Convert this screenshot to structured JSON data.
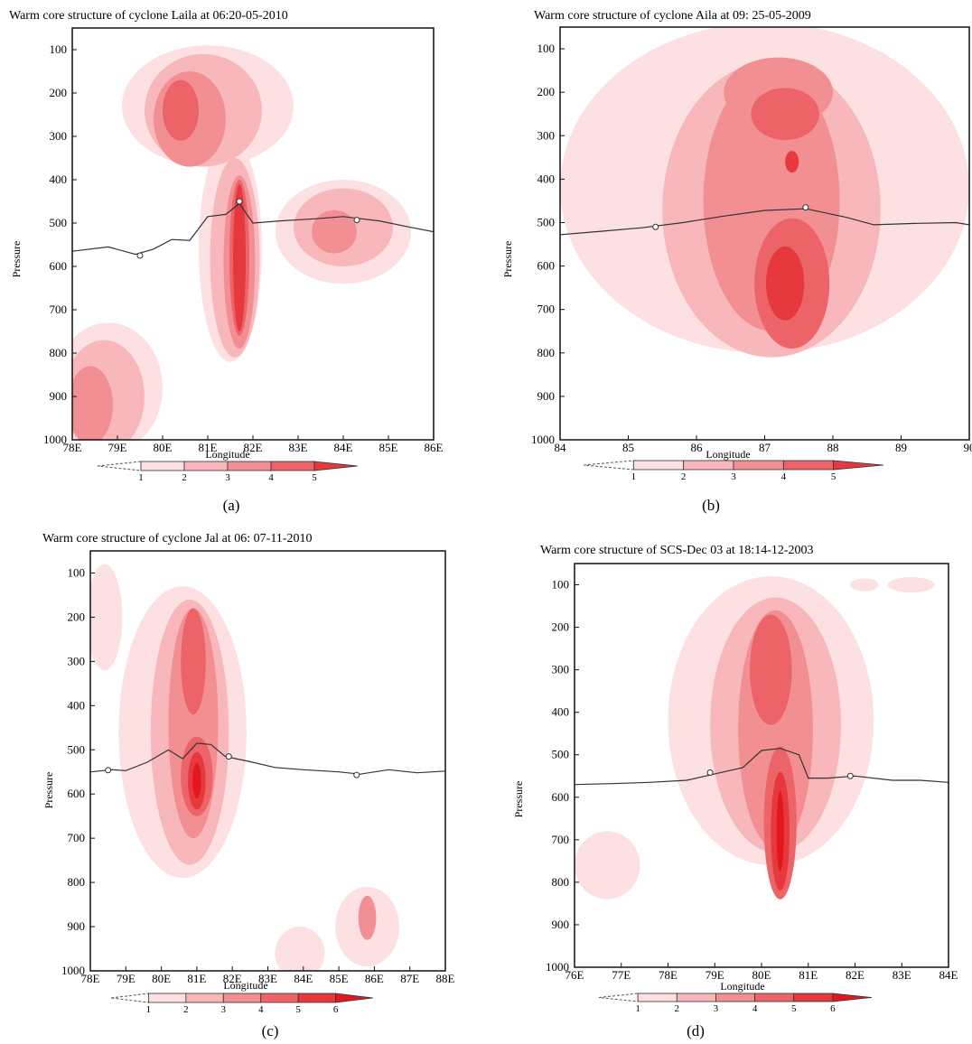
{
  "chart_data": [
    {
      "panel": "a",
      "type": "heatmap",
      "title": "Warm core structure of cyclone Laila at 06:20-05-2010",
      "xlabel": "Longitude",
      "ylabel": "Pressure",
      "caption": "(a)",
      "xticks": [
        "78E",
        "79E",
        "80E",
        "81E",
        "82E",
        "83E",
        "84E",
        "85E",
        "86E"
      ],
      "xlim": [
        78,
        86
      ],
      "yticks": [
        "100",
        "200",
        "300",
        "400",
        "500",
        "600",
        "700",
        "800",
        "900",
        "1000"
      ],
      "ylim": [
        50,
        1000
      ],
      "colorbar": [
        "1",
        "2",
        "3",
        "4",
        "5"
      ],
      "contour_line": {
        "lon": [
          78,
          78.8,
          79.4,
          79.8,
          80.2,
          80.6,
          81,
          81.4,
          81.7,
          82,
          82.6,
          83.4,
          84,
          84.8,
          85.5,
          86
        ],
        "p": [
          565,
          555,
          572,
          560,
          538,
          540,
          485,
          480,
          455,
          500,
          495,
          490,
          485,
          495,
          510,
          520
        ]
      },
      "markers": [
        {
          "lon": 79.5,
          "p": 575
        },
        {
          "lon": 81.7,
          "p": 450
        },
        {
          "lon": 84.3,
          "p": 493
        }
      ],
      "warm_regions": [
        {
          "level": 1,
          "center": [
            81,
            230
          ],
          "rx": 1.9,
          "ry": 140
        },
        {
          "level": 1,
          "center": [
            81.5,
            560
          ],
          "rx": 0.7,
          "ry": 260
        },
        {
          "level": 1,
          "center": [
            84,
            520
          ],
          "rx": 1.5,
          "ry": 120
        },
        {
          "level": 1,
          "center": [
            78.8,
            880
          ],
          "rx": 1.2,
          "ry": 150
        },
        {
          "level": 2,
          "center": [
            80.9,
            240
          ],
          "rx": 1.3,
          "ry": 130
        },
        {
          "level": 2,
          "center": [
            81.6,
            580
          ],
          "rx": 0.55,
          "ry": 230
        },
        {
          "level": 2,
          "center": [
            84,
            510
          ],
          "rx": 1.1,
          "ry": 90
        },
        {
          "level": 2,
          "center": [
            78.7,
            900
          ],
          "rx": 0.9,
          "ry": 130
        },
        {
          "level": 3,
          "center": [
            80.6,
            260
          ],
          "rx": 0.8,
          "ry": 110
        },
        {
          "level": 3,
          "center": [
            81.7,
            590
          ],
          "rx": 0.35,
          "ry": 200
        },
        {
          "level": 3,
          "center": [
            83.8,
            520
          ],
          "rx": 0.5,
          "ry": 50
        },
        {
          "level": 3,
          "center": [
            78.4,
            920
          ],
          "rx": 0.5,
          "ry": 90
        },
        {
          "level": 4,
          "center": [
            80.4,
            240
          ],
          "rx": 0.4,
          "ry": 70
        },
        {
          "level": 4,
          "center": [
            81.7,
            580
          ],
          "rx": 0.22,
          "ry": 180
        },
        {
          "level": 5,
          "center": [
            81.7,
            580
          ],
          "rx": 0.14,
          "ry": 170
        }
      ]
    },
    {
      "panel": "b",
      "type": "heatmap",
      "title": "Warm core structure of cyclone Aila at 09: 25-05-2009",
      "xlabel": "Longitude",
      "ylabel": "Pressure",
      "caption": "(b)",
      "xticks": [
        "84",
        "85",
        "86",
        "87",
        "88",
        "89",
        "90"
      ],
      "xlim": [
        84,
        90
      ],
      "yticks": [
        "100",
        "200",
        "300",
        "400",
        "500",
        "600",
        "700",
        "800",
        "900",
        "1000"
      ],
      "ylim": [
        50,
        1000
      ],
      "colorbar": [
        "1",
        "2",
        "3",
        "4",
        "5"
      ],
      "contour_line": {
        "lon": [
          84,
          84.6,
          85.2,
          85.8,
          86.4,
          87,
          87.6,
          88.2,
          88.6,
          89.2,
          89.8,
          90
        ],
        "p": [
          528,
          520,
          512,
          500,
          485,
          472,
          468,
          488,
          505,
          502,
          500,
          505
        ]
      },
      "markers": [
        {
          "lon": 85.4,
          "p": 510
        },
        {
          "lon": 87.6,
          "p": 465
        }
      ],
      "warm_regions": [
        {
          "level": 1,
          "center": [
            87,
            420
          ],
          "rx": 3.0,
          "ry": 380
        },
        {
          "level": 2,
          "center": [
            87.1,
            470
          ],
          "rx": 1.6,
          "ry": 340
        },
        {
          "level": 3,
          "center": [
            87.1,
            450
          ],
          "rx": 1.0,
          "ry": 300
        },
        {
          "level": 3,
          "center": [
            87.2,
            200
          ],
          "rx": 0.8,
          "ry": 80
        },
        {
          "level": 4,
          "center": [
            87.4,
            640
          ],
          "rx": 0.55,
          "ry": 150
        },
        {
          "level": 4,
          "center": [
            87.3,
            250
          ],
          "rx": 0.5,
          "ry": 60
        },
        {
          "level": 5,
          "center": [
            87.3,
            640
          ],
          "rx": 0.28,
          "ry": 85
        },
        {
          "level": 5,
          "center": [
            87.4,
            360
          ],
          "rx": 0.1,
          "ry": 25
        }
      ]
    },
    {
      "panel": "c",
      "type": "heatmap",
      "title": "Warm core structure of cyclone Jal at 06: 07-11-2010",
      "xlabel": "Longitude",
      "ylabel": "Pressure",
      "caption": "(c)",
      "xticks": [
        "78E",
        "79E",
        "80E",
        "81E",
        "82E",
        "83E",
        "84E",
        "85E",
        "86E",
        "87E",
        "88E"
      ],
      "xlim": [
        78,
        88
      ],
      "yticks": [
        "100",
        "200",
        "300",
        "400",
        "500",
        "600",
        "700",
        "800",
        "900",
        "1000"
      ],
      "ylim": [
        50,
        1000
      ],
      "colorbar": [
        "1",
        "2",
        "3",
        "4",
        "5",
        "6"
      ],
      "contour_line": {
        "lon": [
          78,
          78.6,
          79,
          79.6,
          80.2,
          80.6,
          81,
          81.4,
          81.8,
          82.4,
          83.2,
          84,
          85,
          85.6,
          86.4,
          87.2,
          88
        ],
        "p": [
          550,
          545,
          547,
          528,
          500,
          520,
          485,
          488,
          515,
          525,
          540,
          545,
          550,
          555,
          545,
          552,
          548
        ]
      },
      "markers": [
        {
          "lon": 78.5,
          "p": 546
        },
        {
          "lon": 81.9,
          "p": 515
        },
        {
          "lon": 85.5,
          "p": 557
        }
      ],
      "warm_regions": [
        {
          "level": 1,
          "center": [
            80.6,
            460
          ],
          "rx": 1.8,
          "ry": 330
        },
        {
          "level": 1,
          "center": [
            78.4,
            200
          ],
          "rx": 0.5,
          "ry": 120
        },
        {
          "level": 1,
          "center": [
            85.8,
            900
          ],
          "rx": 0.9,
          "ry": 90
        },
        {
          "level": 1,
          "center": [
            83.9,
            960
          ],
          "rx": 0.7,
          "ry": 60
        },
        {
          "level": 2,
          "center": [
            80.8,
            460
          ],
          "rx": 1.1,
          "ry": 300
        },
        {
          "level": 3,
          "center": [
            80.9,
            440
          ],
          "rx": 0.7,
          "ry": 260
        },
        {
          "level": 3,
          "center": [
            85.8,
            880
          ],
          "rx": 0.25,
          "ry": 50
        },
        {
          "level": 4,
          "center": [
            80.9,
            300
          ],
          "rx": 0.35,
          "ry": 120
        },
        {
          "level": 4,
          "center": [
            81,
            560
          ],
          "rx": 0.45,
          "ry": 90
        },
        {
          "level": 5,
          "center": [
            81,
            570
          ],
          "rx": 0.25,
          "ry": 65
        },
        {
          "level": 6,
          "center": [
            81,
            570
          ],
          "rx": 0.12,
          "ry": 40
        }
      ]
    },
    {
      "panel": "d",
      "type": "heatmap",
      "title": "Warm core structure of SCS-Dec 03 at 18:14-12-2003",
      "xlabel": "Longitude",
      "ylabel": "Pressure",
      "caption": "(d)",
      "xticks": [
        "76E",
        "77E",
        "78E",
        "79E",
        "80E",
        "81E",
        "82E",
        "83E",
        "84E"
      ],
      "xlim": [
        76,
        84
      ],
      "yticks": [
        "100",
        "200",
        "300",
        "400",
        "500",
        "600",
        "700",
        "800",
        "900",
        "1000"
      ],
      "ylim": [
        50,
        1000
      ],
      "colorbar": [
        "1",
        "2",
        "3",
        "4",
        "5",
        "6"
      ],
      "contour_line": {
        "lon": [
          76,
          76.8,
          77.6,
          78.4,
          79,
          79.6,
          80,
          80.4,
          80.8,
          81,
          81.4,
          82,
          82.8,
          83.4,
          84
        ],
        "p": [
          570,
          568,
          565,
          560,
          545,
          530,
          490,
          485,
          500,
          555,
          555,
          550,
          560,
          560,
          565
        ]
      },
      "markers": [
        {
          "lon": 78.9,
          "p": 542
        },
        {
          "lon": 81.9,
          "p": 550
        }
      ],
      "warm_regions": [
        {
          "level": 1,
          "center": [
            80.2,
            420
          ],
          "rx": 2.2,
          "ry": 340
        },
        {
          "level": 1,
          "center": [
            76.7,
            760
          ],
          "rx": 0.7,
          "ry": 80
        },
        {
          "level": 1,
          "center": [
            83.2,
            100
          ],
          "rx": 0.5,
          "ry": 18
        },
        {
          "level": 1,
          "center": [
            82.2,
            100
          ],
          "rx": 0.3,
          "ry": 15
        },
        {
          "level": 2,
          "center": [
            80.3,
            430
          ],
          "rx": 1.4,
          "ry": 300
        },
        {
          "level": 3,
          "center": [
            80.3,
            440
          ],
          "rx": 0.8,
          "ry": 280
        },
        {
          "level": 4,
          "center": [
            80.2,
            300
          ],
          "rx": 0.45,
          "ry": 130
        },
        {
          "level": 4,
          "center": [
            80.4,
            660
          ],
          "rx": 0.35,
          "ry": 180
        },
        {
          "level": 5,
          "center": [
            80.4,
            680
          ],
          "rx": 0.2,
          "ry": 140
        },
        {
          "level": 6,
          "center": [
            80.4,
            680
          ],
          "rx": 0.08,
          "ry": 95
        }
      ]
    }
  ],
  "colors": {
    "levels": [
      "#fde0e1",
      "#f8b8bb",
      "#f28f93",
      "#ec6468",
      "#e5393e",
      "#e3181f"
    ],
    "frame": "#111111",
    "contour": "#333333"
  }
}
